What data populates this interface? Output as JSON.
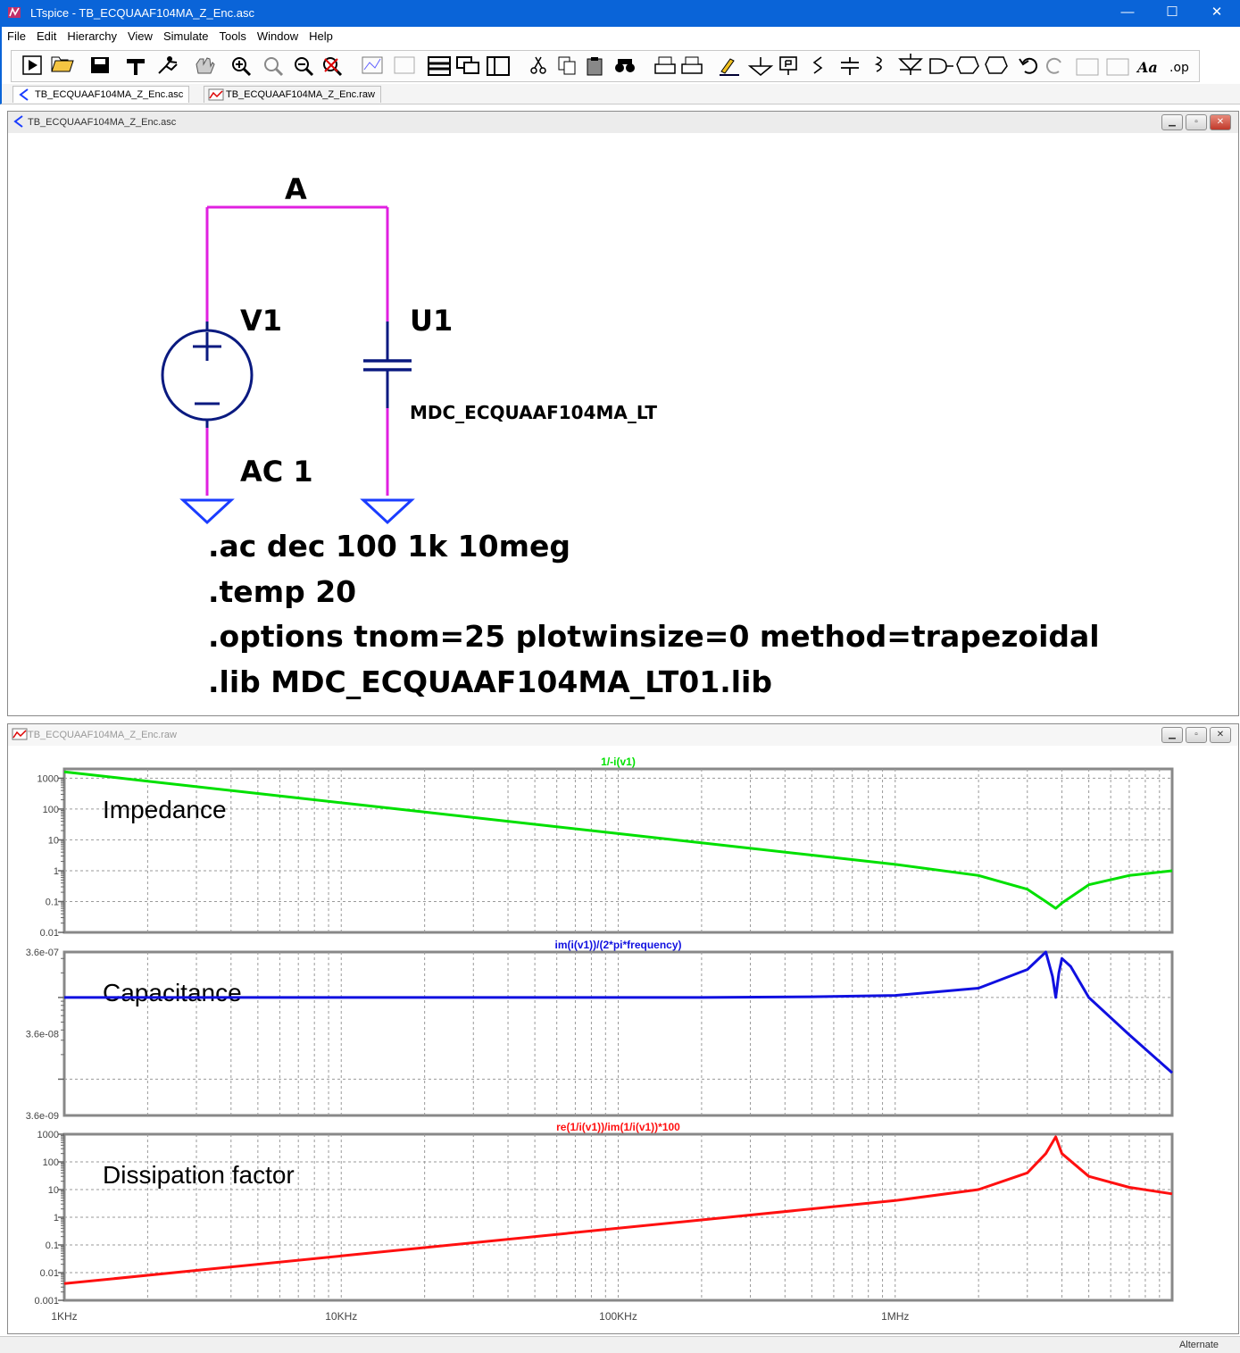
{
  "window": {
    "title": "LTspice - TB_ECQUAAF104MA_Z_Enc.asc",
    "minimize": "—",
    "maximize": "☐",
    "close": "✕"
  },
  "menu": [
    "File",
    "Edit",
    "Hierarchy",
    "View",
    "Simulate",
    "Tools",
    "Window",
    "Help"
  ],
  "toolbar": {
    "text_icon": "Aa",
    "op_icon": ".op"
  },
  "tabs": [
    {
      "label": "TB_ECQUAAF104MA_Z_Enc.asc",
      "icon": "schematic-icon"
    },
    {
      "label": "TB_ECQUAAF104MA_Z_Enc.raw",
      "icon": "waveform-icon"
    }
  ],
  "schematic": {
    "title": "TB_ECQUAAF104MA_Z_Enc.asc",
    "net_label": "A",
    "source_name": "V1",
    "source_value": "AC 1",
    "component_name": "U1",
    "component_model": "MDC_ECQUAAF104MA_LT",
    "directives": [
      ".ac dec 100 1k 10meg",
      ".temp 20",
      ".options tnom=25 plotwinsize=0 method=trapezoidal",
      ".lib MDC_ECQUAAF104MA_LT01.lib"
    ],
    "wire_color": "#e020e0",
    "symbol_color": "#0a1a80",
    "ground_color": "#1a3cff"
  },
  "waveform": {
    "title": "TB_ECQUAAF104MA_Z_Enc.raw",
    "x_ticks": [
      "1KHz",
      "10KHz",
      "100KHz",
      "1MHz"
    ]
  },
  "chart_data": [
    {
      "type": "line",
      "title": "1/-i(v1)",
      "annotation": "Impedance",
      "x_scale": "log",
      "y_scale": "log",
      "xlim": [
        1000,
        10000000
      ],
      "ylim": [
        0.01,
        2000
      ],
      "y_ticks": [
        "1000",
        "100",
        "10",
        "1",
        "0.1",
        "0.01"
      ],
      "grid": true,
      "color": "#00e000",
      "x": [
        1000,
        2000,
        5000,
        10000,
        20000,
        50000,
        100000,
        200000,
        500000,
        1000000,
        2000000,
        3000000,
        3500000,
        3800000,
        4000000,
        5000000,
        7000000,
        10000000
      ],
      "y": [
        1600,
        800,
        320,
        160,
        80,
        32,
        16,
        8,
        3.2,
        1.6,
        0.7,
        0.25,
        0.1,
        0.06,
        0.09,
        0.35,
        0.7,
        1.0
      ]
    },
    {
      "type": "line",
      "title": "im(i(v1))/(2*pi*frequency)",
      "annotation": "Capacitance",
      "x_scale": "log",
      "y_scale": "log",
      "xlim": [
        1000,
        10000000
      ],
      "ylim": [
        3.6e-09,
        3.6e-07
      ],
      "y_ticks": [
        "3.6e-07",
        "3.6e-08",
        "3.6e-09"
      ],
      "grid": true,
      "color": "#1010e0",
      "x": [
        1000,
        10000,
        100000,
        200000,
        500000,
        1000000,
        2000000,
        3000000,
        3500000,
        3700000,
        3800000,
        3900000,
        4000000,
        4300000,
        5000000,
        7000000,
        10000000
      ],
      "y": [
        1e-07,
        1e-07,
        1e-07,
        1e-07,
        1.02e-07,
        1.06e-07,
        1.3e-07,
        2.2e-07,
        3.6e-07,
        1.8e-07,
        1e-07,
        2e-07,
        3e-07,
        2.4e-07,
        1e-07,
        3.5e-08,
        1.2e-08
      ]
    },
    {
      "type": "line",
      "title": "re(1/i(v1))/im(1/i(v1))*100",
      "annotation": "Dissipation factor",
      "x_scale": "log",
      "y_scale": "log",
      "xlim": [
        1000,
        10000000
      ],
      "ylim": [
        0.001,
        1000
      ],
      "y_ticks": [
        "1000",
        "100",
        "10",
        "1",
        "0.1",
        "0.01",
        "0.001"
      ],
      "grid": true,
      "color": "#ff1010",
      "x": [
        1000,
        10000,
        100000,
        1000000,
        2000000,
        3000000,
        3500000,
        3800000,
        4000000,
        5000000,
        7000000,
        10000000
      ],
      "y": [
        0.004,
        0.04,
        0.4,
        4,
        10,
        40,
        200,
        800,
        200,
        30,
        12,
        7
      ]
    }
  ]
}
